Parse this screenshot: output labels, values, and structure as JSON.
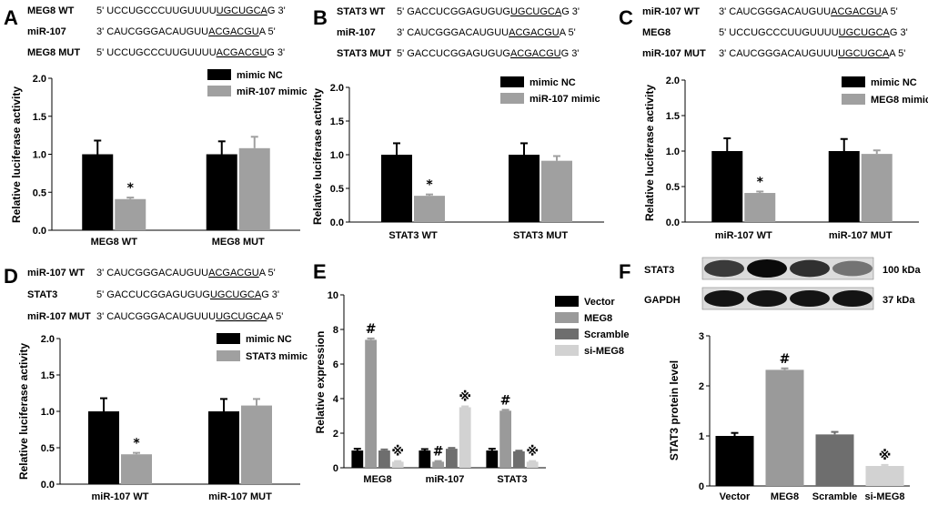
{
  "panels": {
    "A": {
      "letter": "A",
      "seq": [
        {
          "label": "MEG8 WT",
          "prefix": "5' UCCUGCCCUUGUUUU",
          "core": "UGCUGCA",
          "suffix": "G 3'"
        },
        {
          "label": "miR-107",
          "prefix": "3' CAUCGGGACAUGUU",
          "core": "ACGACGU",
          "suffix": "A 5'"
        },
        {
          "label": "MEG8 MUT",
          "prefix": "5' UCCUGCCCUUGUUUU",
          "core": "ACGACGU",
          "suffix": "G 3'"
        }
      ]
    },
    "B": {
      "letter": "B",
      "seq": [
        {
          "label": "STAT3 WT",
          "prefix": "5' GACCUCGGAGUGUG",
          "core": "UGCUGCA",
          "suffix": "G 3'"
        },
        {
          "label": "miR-107",
          "prefix": "3' CAUCGGGACAUGUU",
          "core": "ACGACGU",
          "suffix": "A 5'"
        },
        {
          "label": "STAT3 MUT",
          "prefix": "5' GACCUCGGAGUGUG",
          "core": "ACGACGU",
          "suffix": "G 3'"
        }
      ]
    },
    "C": {
      "letter": "C",
      "seq": [
        {
          "label": "miR-107 WT",
          "prefix": "3' CAUCGGGACAUGUU",
          "core": "ACGACGU",
          "suffix": "A 5'"
        },
        {
          "label": "MEG8",
          "prefix": "5' UCCUGCCCUUGUUUU",
          "core": "UGCUGCA",
          "suffix": "G 3'"
        },
        {
          "label": "miR-107 MUT",
          "prefix": "3' CAUCGGGACAUGUUU",
          "core": "UGCUGCA",
          "suffix": "A 5'"
        }
      ]
    },
    "D": {
      "letter": "D",
      "seq": [
        {
          "label": "miR-107 WT",
          "prefix": "3' CAUCGGGACAUGUU",
          "core": "ACGACGU",
          "suffix": "A 5'"
        },
        {
          "label": "STAT3",
          "prefix": "5' GACCUCGGAGUGUG",
          "core": "UGCUGCA",
          "suffix": "G 3'"
        },
        {
          "label": "miR-107 MUT",
          "prefix": "3' CAUCGGGACAUGUUU",
          "core": "UGCUGCA",
          "suffix": "A 5'"
        }
      ]
    },
    "E": {
      "letter": "E"
    },
    "F": {
      "letter": "F",
      "blot": {
        "rows": [
          {
            "protein": "STAT3",
            "size": "100 kDa"
          },
          {
            "protein": "GAPDH",
            "size": "37 kDa"
          }
        ]
      }
    }
  },
  "chart_data": [
    {
      "panel": "A",
      "type": "bar",
      "categories": [
        "MEG8 WT",
        "MEG8 MUT"
      ],
      "series": [
        {
          "name": "mimic NC",
          "values": [
            1.0,
            1.0
          ],
          "errors": [
            0.18,
            0.17
          ],
          "color": "#000000"
        },
        {
          "name": "miR-107 mimic",
          "values": [
            0.41,
            1.08
          ],
          "errors": [
            0.02,
            0.15
          ],
          "color": "#a0a0a0"
        }
      ],
      "annotations": [
        {
          "category": 0,
          "series": 1,
          "text": "*"
        }
      ],
      "ylabel": "Relative luciferase activity",
      "ylim": [
        0,
        2.0
      ],
      "yticks": [
        0.0,
        0.5,
        1.0,
        1.5,
        2.0
      ],
      "legend": "top-right"
    },
    {
      "panel": "B",
      "type": "bar",
      "categories": [
        "STAT3 WT",
        "STAT3 MUT"
      ],
      "series": [
        {
          "name": "mimic NC",
          "values": [
            1.0,
            1.0
          ],
          "errors": [
            0.17,
            0.17
          ],
          "color": "#000000"
        },
        {
          "name": "miR-107 mimic",
          "values": [
            0.39,
            0.91
          ],
          "errors": [
            0.02,
            0.07
          ],
          "color": "#a0a0a0"
        }
      ],
      "annotations": [
        {
          "category": 0,
          "series": 1,
          "text": "*"
        }
      ],
      "ylabel": "Relative luciferase activity",
      "ylim": [
        0,
        2.0
      ],
      "yticks": [
        0.0,
        0.5,
        1.0,
        1.5,
        2.0
      ],
      "legend": "top-right"
    },
    {
      "panel": "C",
      "type": "bar",
      "categories": [
        "miR-107 WT",
        "miR-107 MUT"
      ],
      "series": [
        {
          "name": "mimic NC",
          "values": [
            1.0,
            1.0
          ],
          "errors": [
            0.18,
            0.17
          ],
          "color": "#000000"
        },
        {
          "name": "MEG8 mimic",
          "values": [
            0.41,
            0.96
          ],
          "errors": [
            0.02,
            0.05
          ],
          "color": "#a0a0a0"
        }
      ],
      "annotations": [
        {
          "category": 0,
          "series": 1,
          "text": "*"
        }
      ],
      "ylabel": "Relative luciferase activity",
      "ylim": [
        0,
        2.0
      ],
      "yticks": [
        0.0,
        0.5,
        1.0,
        1.5,
        2.0
      ],
      "legend": "top-right"
    },
    {
      "panel": "D",
      "type": "bar",
      "categories": [
        "miR-107 WT",
        "miR-107 MUT"
      ],
      "series": [
        {
          "name": "mimic NC",
          "values": [
            1.0,
            1.0
          ],
          "errors": [
            0.18,
            0.17
          ],
          "color": "#000000"
        },
        {
          "name": "STAT3 mimic",
          "values": [
            0.41,
            1.08
          ],
          "errors": [
            0.02,
            0.09
          ],
          "color": "#a0a0a0"
        }
      ],
      "annotations": [
        {
          "category": 0,
          "series": 1,
          "text": "*"
        }
      ],
      "ylabel": "Relative luciferase activity",
      "ylim": [
        0,
        2.0
      ],
      "yticks": [
        0.0,
        0.5,
        1.0,
        1.5,
        2.0
      ],
      "legend": "top-right"
    },
    {
      "panel": "E",
      "type": "bar",
      "categories": [
        "MEG8",
        "miR-107",
        "STAT3"
      ],
      "series": [
        {
          "name": "Vector",
          "values": [
            1.0,
            1.0,
            1.0
          ],
          "errors": [
            0.1,
            0.08,
            0.1
          ],
          "color": "#000000"
        },
        {
          "name": "MEG8",
          "values": [
            7.4,
            0.35,
            3.3
          ],
          "errors": [
            0.08,
            0.04,
            0.05
          ],
          "color": "#9a9a9a"
        },
        {
          "name": "Scramble",
          "values": [
            1.0,
            1.1,
            0.95
          ],
          "errors": [
            0.06,
            0.05,
            0.04
          ],
          "color": "#6e6e6e"
        },
        {
          "name": "si-MEG8",
          "values": [
            0.35,
            3.5,
            0.35
          ],
          "errors": [
            0.04,
            0.05,
            0.04
          ],
          "color": "#d2d2d2"
        }
      ],
      "annotations": [
        {
          "category": 0,
          "series": 1,
          "text": "#"
        },
        {
          "category": 0,
          "series": 3,
          "text": "※"
        },
        {
          "category": 1,
          "series": 1,
          "text": "#"
        },
        {
          "category": 1,
          "series": 3,
          "text": "※"
        },
        {
          "category": 2,
          "series": 1,
          "text": "#"
        },
        {
          "category": 2,
          "series": 3,
          "text": "※"
        }
      ],
      "ylabel": "Relative expression",
      "ylim": [
        0,
        10
      ],
      "yticks": [
        0,
        2,
        4,
        6,
        8,
        10
      ],
      "legend": "right"
    },
    {
      "panel": "F",
      "type": "bar",
      "categories": [
        "Vector",
        "MEG8",
        "Scramble",
        "si-MEG8"
      ],
      "values": [
        1.0,
        2.32,
        1.03,
        0.4
      ],
      "errors": [
        0.06,
        0.03,
        0.05,
        0.02
      ],
      "colors": [
        "#000000",
        "#9a9a9a",
        "#6e6e6e",
        "#d2d2d2"
      ],
      "annotations": [
        {
          "category": 1,
          "text": "#"
        },
        {
          "category": 3,
          "text": "※"
        }
      ],
      "ylabel": "STAT3 protein level",
      "ylim": [
        0,
        3
      ],
      "yticks": [
        0,
        1,
        2,
        3
      ]
    }
  ]
}
